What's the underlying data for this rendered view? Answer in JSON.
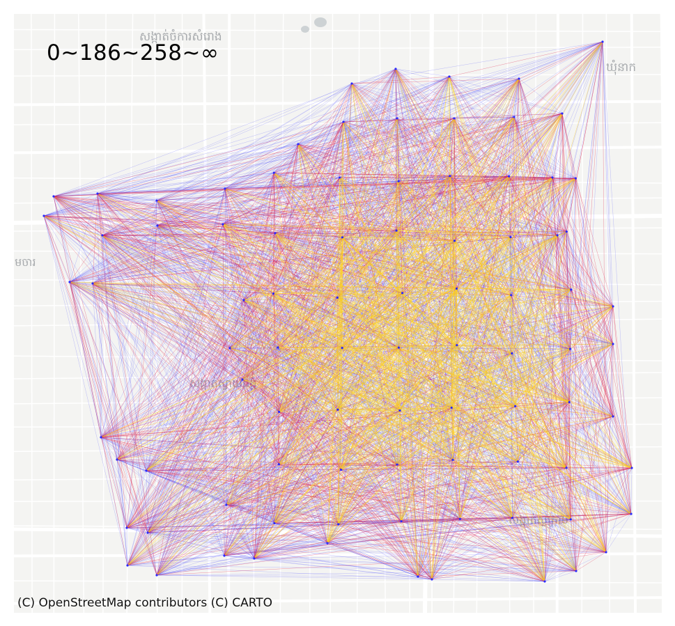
{
  "map": {
    "title_label": "0~186~258~∞",
    "attribution": "(C) OpenStreetMap contributors (C) CARTO",
    "place_labels": [
      "សង្កាត់ចំការសំរោង",
      "ឃុំនាក",
      "រុមចារ",
      "សង្កាត់ស្វាយដង្គំ",
      "សង្កាត់ស្លក្រាម"
    ],
    "bins": [
      "0~186",
      "186~258",
      "258~∞"
    ],
    "colors": {
      "low": "#3b3bff",
      "mid": "#e0204a",
      "high": "#ffd21a",
      "node": "#2a2aff",
      "background": "#f4f4f2",
      "road": "#ffffff"
    },
    "basemap_icons": [
      "river-icon",
      "road-grid"
    ]
  }
}
